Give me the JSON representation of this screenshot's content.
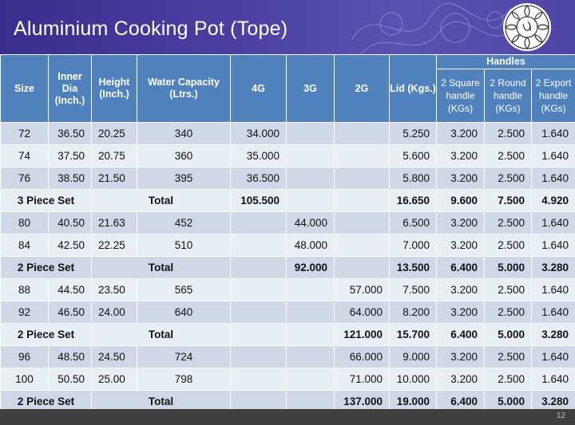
{
  "title": "Aluminium Cooking Pot (Tope)",
  "page_number": "12",
  "logo": {
    "icon": "ornamental-mandala-logo"
  },
  "table": {
    "headers": {
      "size": "Size",
      "inner_dia": "Inner Dia (Inch.)",
      "height": "Height (Inch.)",
      "water_capacity": "Water Capacity (Ltrs.)",
      "g4": "4G",
      "g3": "3G",
      "g2": "2G",
      "lid": "Lid (Kgs.)",
      "handles": "Handles",
      "square": "2 Square handle (KGs)",
      "round": "2 Round handle (KGs)",
      "export": "2 Export handle (KGs)"
    },
    "rows": [
      {
        "type": "item",
        "size": "72",
        "dia": "36.50",
        "height": "20.25",
        "cap": "340",
        "g4": "34.000",
        "g3": "",
        "g2": "",
        "lid": "5.250",
        "sq": "3.200",
        "rd": "2.500",
        "ex": "1.640"
      },
      {
        "type": "item",
        "size": "74",
        "dia": "37.50",
        "height": "20.75",
        "cap": "360",
        "g4": "35.000",
        "g3": "",
        "g2": "",
        "lid": "5.600",
        "sq": "3.200",
        "rd": "2.500",
        "ex": "1.640"
      },
      {
        "type": "item",
        "size": "76",
        "dia": "38.50",
        "height": "21.50",
        "cap": "395",
        "g4": "36.500",
        "g3": "",
        "g2": "",
        "lid": "5.800",
        "sq": "3.200",
        "rd": "2.500",
        "ex": "1.640"
      },
      {
        "type": "total",
        "set": "3 Piece Set",
        "label": "Total",
        "g4": "105.500",
        "g3": "",
        "g2": "",
        "lid": "16.650",
        "sq": "9.600",
        "rd": "7.500",
        "ex": "4.920"
      },
      {
        "type": "item",
        "size": "80",
        "dia": "40.50",
        "height": "21.63",
        "cap": "452",
        "g4": "",
        "g3": "44.000",
        "g2": "",
        "lid": "6.500",
        "sq": "3.200",
        "rd": "2.500",
        "ex": "1.640"
      },
      {
        "type": "item",
        "size": "84",
        "dia": "42.50",
        "height": "22.25",
        "cap": "510",
        "g4": "",
        "g3": "48.000",
        "g2": "",
        "lid": "7.000",
        "sq": "3.200",
        "rd": "2.500",
        "ex": "1.640"
      },
      {
        "type": "total",
        "set": "2 Piece Set",
        "label": "Total",
        "g4": "",
        "g3": "92.000",
        "g2": "",
        "lid": "13.500",
        "sq": "6.400",
        "rd": "5.000",
        "ex": "3.280"
      },
      {
        "type": "item",
        "size": "88",
        "dia": "44.50",
        "height": "23.50",
        "cap": "565",
        "g4": "",
        "g3": "",
        "g2": "57.000",
        "lid": "7.500",
        "sq": "3.200",
        "rd": "2.500",
        "ex": "1.640"
      },
      {
        "type": "item",
        "size": "92",
        "dia": "46.50",
        "height": "24.00",
        "cap": "640",
        "g4": "",
        "g3": "",
        "g2": "64.000",
        "lid": "8.200",
        "sq": "3.200",
        "rd": "2.500",
        "ex": "1.640"
      },
      {
        "type": "total",
        "set": "2 Piece Set",
        "label": "Total",
        "g4": "",
        "g3": "",
        "g2": "121.000",
        "lid": "15.700",
        "sq": "6.400",
        "rd": "5.000",
        "ex": "3.280"
      },
      {
        "type": "item",
        "size": "96",
        "dia": "48.50",
        "height": "24.50",
        "cap": "724",
        "g4": "",
        "g3": "",
        "g2": "66.000",
        "lid": "9.000",
        "sq": "3.200",
        "rd": "2.500",
        "ex": "1.640"
      },
      {
        "type": "item",
        "size": "100",
        "dia": "50.50",
        "height": "25.00",
        "cap": "798",
        "g4": "",
        "g3": "",
        "g2": "71.000",
        "lid": "10.000",
        "sq": "3.200",
        "rd": "2.500",
        "ex": "1.640"
      },
      {
        "type": "total",
        "set": "2 Piece Set",
        "label": "Total",
        "g4": "",
        "g3": "",
        "g2": "137.000",
        "lid": "19.000",
        "sq": "6.400",
        "rd": "5.000",
        "ex": "3.280"
      }
    ]
  },
  "colors": {
    "header_bg": "#4a3fa0",
    "table_header": "#4f81bd",
    "row_odd": "#d0d8e8",
    "row_even": "#e9edf4",
    "footer": "#404040"
  }
}
